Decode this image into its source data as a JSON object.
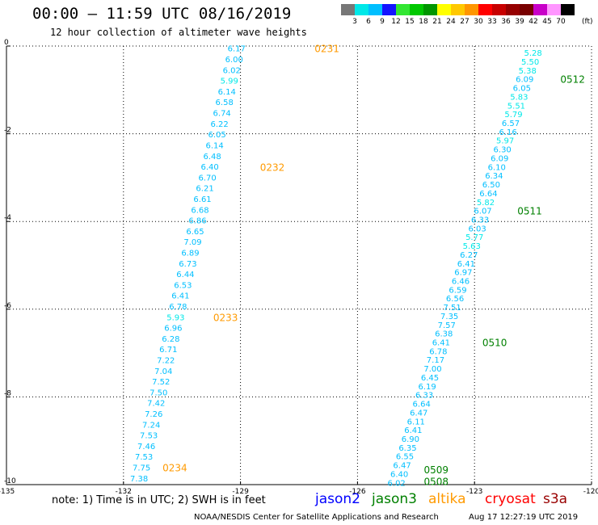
{
  "header": {
    "title": "00:00 – 11:59 UTC 08/16/2019",
    "subtitle": "12 hour collection of altimeter wave heights"
  },
  "legend": {
    "colors": [
      "#777777",
      "#00e8e8",
      "#00bfff",
      "#1414ff",
      "#32e632",
      "#00c800",
      "#009600",
      "#ffff00",
      "#ffc800",
      "#ff9600",
      "#ff0000",
      "#c80000",
      "#960000",
      "#780000",
      "#c800c8",
      "#ff96ff",
      "#000000"
    ],
    "labels": [
      "3",
      "6",
      "9",
      "12",
      "15",
      "18",
      "21",
      "24",
      "27",
      "30",
      "33",
      "36",
      "39",
      "42",
      "45",
      "70"
    ],
    "unit": "(ft)"
  },
  "chart_data": {
    "type": "scatter",
    "xlim": [
      -135,
      -120
    ],
    "ylim": [
      -10,
      0
    ],
    "x_ticks": [
      -135,
      -132,
      -129,
      -126,
      -123,
      -120
    ],
    "x_tick_labels": [
      "-135",
      "-132",
      "-129",
      "-126",
      "-123",
      "-120"
    ],
    "y_ticks": [
      0,
      -2,
      -4,
      -6,
      -8,
      -10
    ],
    "y_tick_labels": [
      "0",
      "-2",
      "-4",
      "-6",
      "-8",
      "-10"
    ],
    "grid": true,
    "tracks": [
      {
        "satellite": "altika",
        "start": [
          -129.1,
          -0.05
        ],
        "end": [
          -131.6,
          -9.85
        ],
        "values": [
          "6.17",
          "6.00",
          "6.02",
          "5.99",
          "6.14",
          "6.58",
          "6.74",
          "6.22",
          "6.05",
          "6.14",
          "6.48",
          "6.40",
          "6.70",
          "6.21",
          "6.61",
          "6.68",
          "6.86",
          "6.65",
          "7.09",
          "6.89",
          "6.73",
          "6.44",
          "6.53",
          "6.41",
          "6.78",
          "5.93",
          "6.96",
          "6.28",
          "6.71",
          "7.22",
          "7.04",
          "7.52",
          "7.50",
          "7.42",
          "7.26",
          "7.24",
          "7.53",
          "7.46",
          "7.53",
          "7.75",
          "7.38"
        ],
        "time_labels": [
          {
            "text": "0231",
            "x": -127.1,
            "y": -0.05
          },
          {
            "text": "0232",
            "x": -128.5,
            "y": -2.75
          },
          {
            "text": "0233",
            "x": -129.7,
            "y": -6.18
          },
          {
            "text": "0234",
            "x": -131.0,
            "y": -9.6
          }
        ]
      },
      {
        "satellite": "jason3",
        "start": [
          -121.5,
          -0.15
        ],
        "end": [
          -125.0,
          -9.95
        ],
        "values": [
          "5.28",
          "5.50",
          "5.38",
          "6.09",
          "6.05",
          "5.83",
          "5.51",
          "5.79",
          "6.57",
          "6.16",
          "5.97",
          "6.30",
          "6.09",
          "6.10",
          "6.34",
          "6.50",
          "6.64",
          "5.82",
          "6.07",
          "6.33",
          "6.03",
          "5.77",
          "5.63",
          "6.27",
          "6.41",
          "6.97",
          "6.46",
          "6.59",
          "6.56",
          "7.51",
          "7.35",
          "7.57",
          "6.38",
          "6.41",
          "6.78",
          "7.17",
          "7.00",
          "6.45",
          "6.19",
          "6.33",
          "6.64",
          "6.47",
          "6.11",
          "6.41",
          "6.90",
          "6.35",
          "6.55",
          "6.47",
          "6.40",
          "6.02"
        ],
        "time_labels": [
          {
            "text": "0512",
            "x": -120.8,
            "y": -0.75
          },
          {
            "text": "0511",
            "x": -121.9,
            "y": -3.75
          },
          {
            "text": "0510",
            "x": -122.8,
            "y": -6.75
          },
          {
            "text": "0509",
            "x": -124.3,
            "y": -9.65
          },
          {
            "text": "0508",
            "x": -124.3,
            "y": -9.92
          }
        ]
      }
    ]
  },
  "footer": {
    "note": "note: 1) Time is in UTC; 2) SWH is in feet",
    "satellites": [
      {
        "name": "jason2",
        "color": "#0000ff"
      },
      {
        "name": "jason3",
        "color": "#008000"
      },
      {
        "name": "altika",
        "color": "#ff9a00"
      },
      {
        "name": "cryosat",
        "color": "#ff0000"
      },
      {
        "name": "s3a",
        "color": "#990000"
      }
    ],
    "credit": "NOAA/NESDIS Center for Satellite Applications and Research",
    "timestamp": "Aug 17 12:27:19 UTC 2019"
  }
}
